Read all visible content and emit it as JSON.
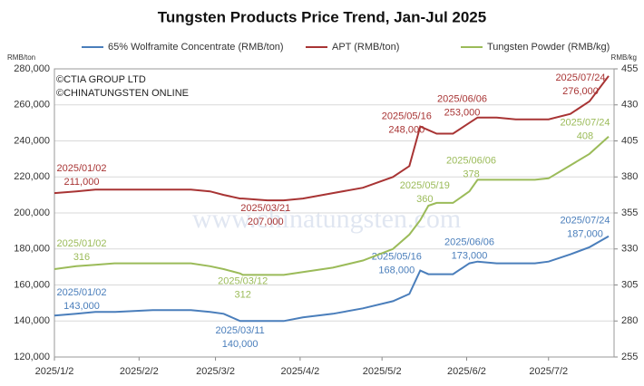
{
  "chart_data": {
    "type": "line",
    "title": "Tungsten Products Price Trend, Jan-Jul 2025",
    "ylabel": "RMB/ton",
    "y2label": "RMB/kg",
    "annotations": [
      "©CTIA GROUP LTD",
      "©CHINATUNGSTEN ONLINE"
    ],
    "watermark": "www.chinatungsten.com",
    "legend": "top",
    "grid": true,
    "x": [
      "2025/01/02",
      "2025/01/10",
      "2025/01/17",
      "2025/01/24",
      "2025/02/07",
      "2025/02/14",
      "2025/02/21",
      "2025/02/28",
      "2025/03/05",
      "2025/03/11",
      "2025/03/12",
      "2025/03/21",
      "2025/03/27",
      "2025/04/03",
      "2025/04/14",
      "2025/04/25",
      "2025/05/06",
      "2025/05/12",
      "2025/05/16",
      "2025/05/19",
      "2025/05/22",
      "2025/05/28",
      "2025/06/03",
      "2025/06/06",
      "2025/06/13",
      "2025/06/20",
      "2025/06/27",
      "2025/07/02",
      "2025/07/10",
      "2025/07/17",
      "2025/07/24"
    ],
    "xlim": [
      "2025/01/02",
      "2025/07/26"
    ],
    "xticks": [
      {
        "value": "2025/01/02",
        "label": "2025/1/2"
      },
      {
        "value": "2025/02/02",
        "label": "2025/2/2"
      },
      {
        "value": "2025/03/02",
        "label": "2025/3/2"
      },
      {
        "value": "2025/04/02",
        "label": "2025/4/2"
      },
      {
        "value": "2025/05/02",
        "label": "2025/5/2"
      },
      {
        "value": "2025/06/02",
        "label": "2025/6/2"
      },
      {
        "value": "2025/07/02",
        "label": "2025/7/2"
      }
    ],
    "ylim": [
      120000,
      280000
    ],
    "yticks": [
      {
        "value": 120000,
        "label": "120,000"
      },
      {
        "value": 140000,
        "label": "140,000"
      },
      {
        "value": 160000,
        "label": "160,000"
      },
      {
        "value": 180000,
        "label": "180,000"
      },
      {
        "value": 200000,
        "label": "200,000"
      },
      {
        "value": 220000,
        "label": "220,000"
      },
      {
        "value": 240000,
        "label": "240,000"
      },
      {
        "value": 260000,
        "label": "260,000"
      },
      {
        "value": 280000,
        "label": "280,000"
      }
    ],
    "y2lim": [
      255,
      455
    ],
    "y2ticks": [
      255,
      280,
      305,
      330,
      355,
      380,
      405,
      430,
      455
    ],
    "series": [
      {
        "name": "65% Wolframite Concentrate (RMB/ton)",
        "color": "#4a7ebb",
        "values": [
          143000,
          144000,
          145000,
          145000,
          146000,
          146000,
          146000,
          145000,
          144000,
          140000,
          140000,
          140000,
          140000,
          142000,
          144000,
          147000,
          151000,
          155000,
          168000,
          166000,
          166000,
          166000,
          172000,
          173000,
          172000,
          172000,
          172000,
          173000,
          177000,
          181000,
          187000
        ],
        "value_labels": [
          "143,000",
          null,
          null,
          null,
          null,
          null,
          null,
          null,
          null,
          "140,000",
          null,
          null,
          null,
          null,
          null,
          null,
          null,
          null,
          "168,000",
          null,
          null,
          null,
          null,
          "173,000",
          null,
          null,
          null,
          null,
          null,
          null,
          "187,000"
        ]
      },
      {
        "name": "APT (RMB/ton)",
        "color": "#a83434",
        "values": [
          211000,
          212000,
          213000,
          213000,
          213000,
          213000,
          213000,
          212000,
          210000,
          208000,
          208000,
          207000,
          207000,
          208000,
          211000,
          214000,
          220000,
          226000,
          248000,
          246000,
          244000,
          244000,
          250000,
          253000,
          253000,
          252000,
          252000,
          252000,
          255000,
          262000,
          276000
        ],
        "value_labels": [
          "211,000",
          null,
          null,
          null,
          null,
          null,
          null,
          null,
          null,
          null,
          null,
          "207,000",
          null,
          null,
          null,
          null,
          null,
          null,
          "248,000",
          null,
          null,
          null,
          null,
          "253,000",
          null,
          null,
          null,
          null,
          null,
          null,
          "276,000"
        ]
      },
      {
        "name": "Tungsten Powder (RMB/kg)",
        "color": "#9bbb59",
        "axis": "y2",
        "values": [
          316,
          318,
          319,
          320,
          320,
          320,
          320,
          318,
          316,
          313,
          312,
          312,
          312,
          314,
          317,
          322,
          330,
          340,
          350,
          360,
          362,
          362,
          370,
          378,
          378,
          378,
          378,
          379,
          388,
          396,
          408
        ]
      }
    ]
  }
}
